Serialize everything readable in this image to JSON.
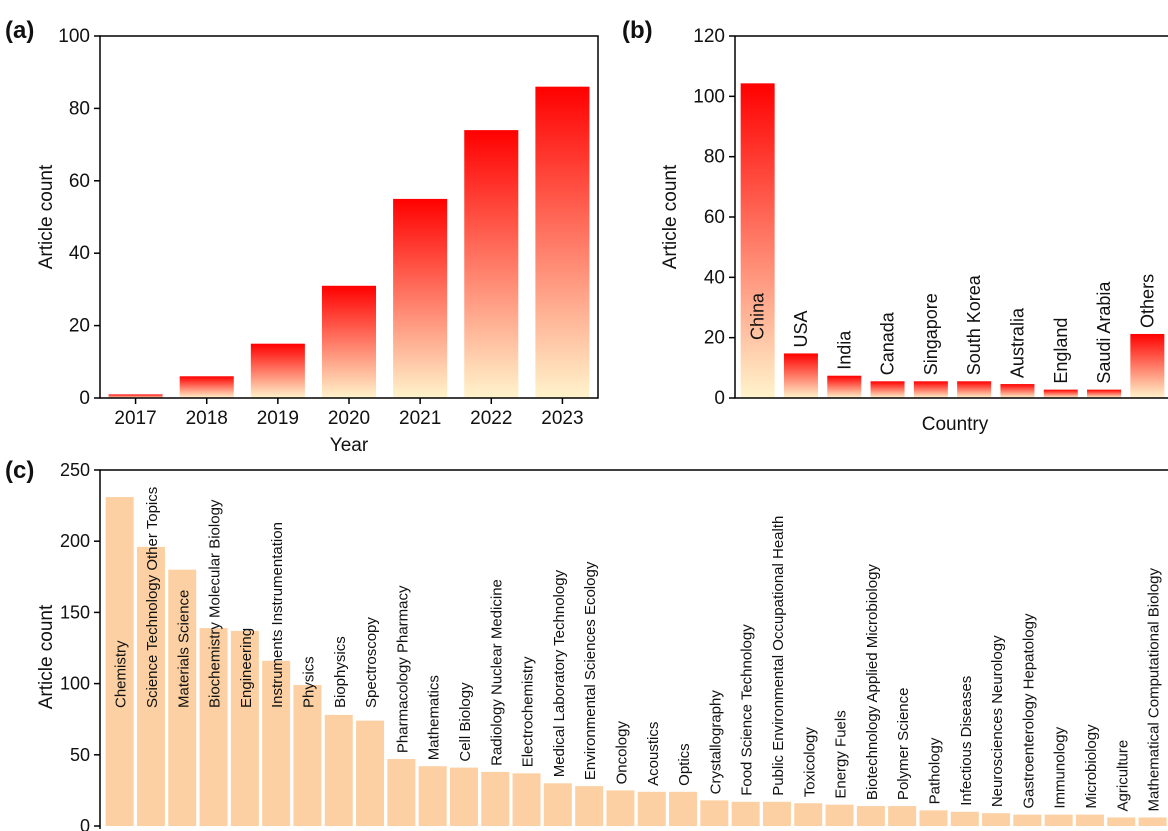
{
  "colors": {
    "grad_top": "#ff0000",
    "grad_bottom": "#fff4cc",
    "bar_c": "#fcd0a2",
    "axis": "#000000"
  },
  "chart_data": [
    {
      "panel": "(a)",
      "type": "bar",
      "categories": [
        "2017",
        "2018",
        "2019",
        "2020",
        "2021",
        "2022",
        "2023"
      ],
      "values": [
        1,
        6,
        15,
        31,
        55,
        74,
        86
      ],
      "xlabel": "Year",
      "ylabel": "Article count",
      "ylim": [
        0,
        100
      ],
      "yticks": [
        "0",
        "20",
        "40",
        "60",
        "80",
        "100"
      ],
      "grid": false
    },
    {
      "panel": "(b)",
      "type": "bar",
      "categories": [
        "China",
        "USA",
        "India",
        "Canada",
        "Singapore",
        "South Korea",
        "Australia",
        "England",
        "Saudi Arabia",
        "Others"
      ],
      "values": [
        113,
        16,
        8,
        6,
        6,
        6,
        5,
        3,
        3,
        23
      ],
      "xlabel": "Country",
      "ylabel": "Article count",
      "ylim": [
        0,
        130
      ],
      "yticks": [
        "0",
        "20",
        "40",
        "60",
        "80",
        "100",
        "120"
      ],
      "grid": false
    },
    {
      "panel": "(c)",
      "type": "bar",
      "categories": [
        "Chemistry",
        "Science Technology Other Topics",
        "Materials Science",
        "Biochemistry Molecular Biology",
        "Engineering",
        "Instruments Instrumentation",
        "Physics",
        "Biophysics",
        "Spectroscopy",
        "Pharmacology Pharmacy",
        "Mathematics",
        "Cell Biology",
        "Radiology Nuclear Medicine",
        "Electrochemistry",
        "Medical Laboratory Technology",
        "Environmental Sciences Ecology",
        "Oncology",
        "Acoustics",
        "Optics",
        "Crystallography",
        "Food Science Technology",
        "Public Environmental Occupational Health",
        "Toxicology",
        "Energy Fuels",
        "Biotechnology Applied Microbiology",
        "Polymer Science",
        "Pathology",
        "Infectious Diseases",
        "Neurosciences Neurology",
        "Gastroenterology Hepatology",
        "Immunology",
        "Microbiology",
        "Agriculture",
        "Mathematical Computational Biology"
      ],
      "values": [
        231,
        196,
        180,
        139,
        137,
        116,
        99,
        78,
        74,
        47,
        42,
        41,
        38,
        37,
        30,
        28,
        25,
        24,
        24,
        18,
        17,
        17,
        16,
        15,
        14,
        14,
        11,
        10,
        9,
        8,
        8,
        8,
        6,
        6
      ],
      "ylabel": "Article count",
      "ylim": [
        0,
        250
      ],
      "yticks": [
        "0",
        "50",
        "100",
        "150",
        "200",
        "250"
      ],
      "grid": false
    }
  ]
}
